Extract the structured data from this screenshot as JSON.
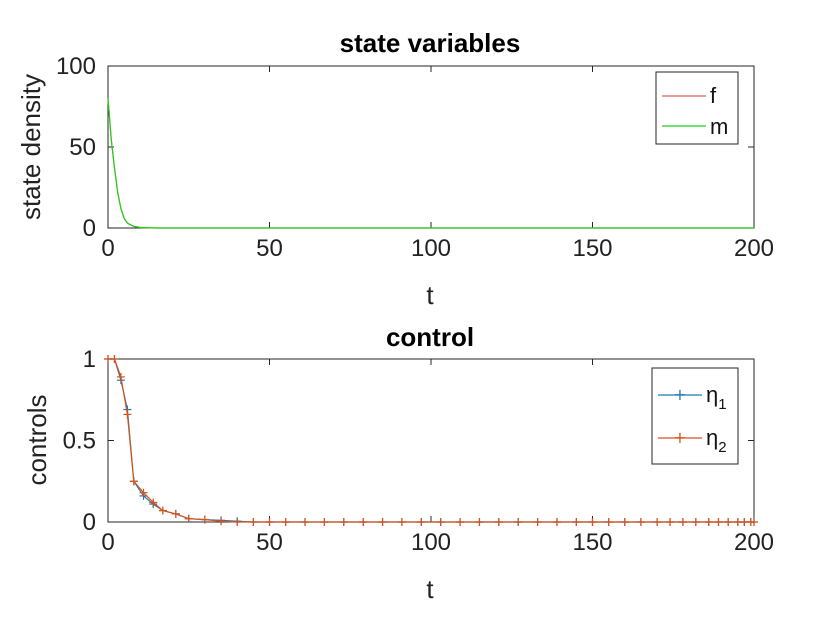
{
  "chart_data": [
    {
      "type": "line",
      "title": "state variables",
      "xlabel": "t",
      "ylabel": "state density",
      "xlim": [
        0,
        200
      ],
      "ylim": [
        0,
        100
      ],
      "xticks": [
        0,
        50,
        100,
        150,
        200
      ],
      "yticks": [
        0,
        50,
        100
      ],
      "grid": false,
      "legend_position": "top-right",
      "series": [
        {
          "name": "f",
          "color": "#d95f4b",
          "marker": "none",
          "x": [
            0,
            1,
            2,
            3,
            4,
            5,
            6,
            8,
            10,
            15,
            200
          ],
          "y": [
            80,
            55,
            37,
            22,
            12,
            6,
            3,
            1,
            0.3,
            0,
            0
          ]
        },
        {
          "name": "m",
          "color": "#1fd01f",
          "marker": "none",
          "x": [
            0,
            1,
            2,
            3,
            4,
            5,
            6,
            8,
            10,
            15,
            200
          ],
          "y": [
            80,
            55,
            37,
            22,
            12,
            6,
            3,
            1,
            0.3,
            0,
            0
          ]
        }
      ]
    },
    {
      "type": "line",
      "title": "control",
      "xlabel": "t",
      "ylabel": "controls",
      "xlim": [
        0,
        200
      ],
      "ylim": [
        0,
        1
      ],
      "xticks": [
        0,
        50,
        100,
        150,
        200
      ],
      "yticks": [
        0,
        0.5,
        1
      ],
      "grid": false,
      "legend_position": "top-right",
      "series": [
        {
          "name": "η1",
          "color": "#1f77b4",
          "marker": "+",
          "x": [
            0,
            2,
            4,
            6,
            8,
            11,
            14,
            17,
            21,
            25,
            30,
            35,
            40,
            45,
            50,
            55,
            61,
            67,
            73,
            79,
            85,
            91,
            97,
            103,
            109,
            115,
            121,
            127,
            133,
            139,
            145,
            150,
            155,
            160,
            165,
            170,
            174,
            178,
            182,
            186,
            189,
            192,
            195,
            197,
            199,
            200
          ],
          "y": [
            1,
            1,
            0.87,
            0.69,
            0.25,
            0.16,
            0.11,
            0.07,
            0.05,
            0.02,
            0.015,
            0.01,
            0.005,
            0,
            0,
            0,
            0,
            0,
            0,
            0,
            0,
            0,
            0,
            0,
            0,
            0,
            0,
            0,
            0,
            0,
            0,
            0,
            0,
            0,
            0,
            0,
            0,
            0,
            0,
            0,
            0,
            0,
            0,
            0,
            0,
            0
          ]
        },
        {
          "name": "η2",
          "color": "#d95319",
          "marker": "+",
          "x": [
            0,
            2,
            4,
            6,
            8,
            11,
            14,
            17,
            21,
            25,
            30,
            35,
            40,
            45,
            50,
            55,
            61,
            67,
            73,
            79,
            85,
            91,
            97,
            103,
            109,
            115,
            121,
            127,
            133,
            139,
            145,
            150,
            155,
            160,
            165,
            170,
            174,
            178,
            182,
            186,
            189,
            192,
            195,
            197,
            199,
            200
          ],
          "y": [
            1,
            1,
            0.89,
            0.66,
            0.25,
            0.18,
            0.12,
            0.07,
            0.05,
            0.02,
            0.015,
            0.005,
            0,
            0,
            0,
            0,
            0,
            0,
            0,
            0,
            0,
            0,
            0,
            0,
            0,
            0,
            0,
            0,
            0,
            0,
            0,
            0,
            0,
            0,
            0,
            0,
            0,
            0,
            0,
            0,
            0,
            0,
            0,
            0,
            0,
            0
          ]
        }
      ]
    }
  ],
  "legend_labels": [
    {
      "base": "f",
      "sub": ""
    },
    {
      "base": "m",
      "sub": ""
    },
    {
      "base": "η",
      "sub": "1"
    },
    {
      "base": "η",
      "sub": "2"
    }
  ]
}
